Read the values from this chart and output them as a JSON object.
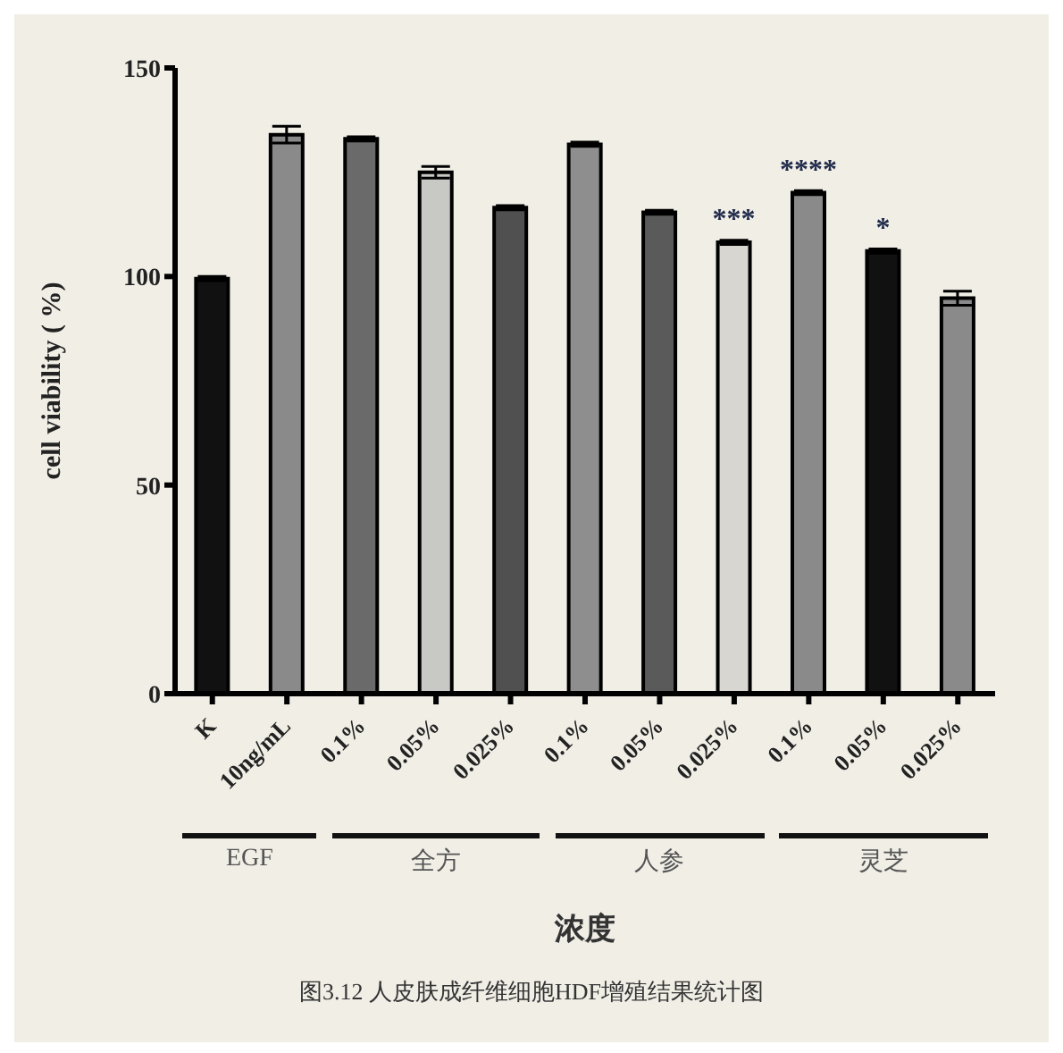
{
  "chart_data": {
    "type": "bar",
    "xlabel": "浓度",
    "ylabel": "cell viability ( %)",
    "categories": [
      "K",
      "10ng/mL",
      "0.1%",
      "0.05%",
      "0.025%",
      "0.1%",
      "0.05%",
      "0.025%",
      "0.1%",
      "0.05%",
      "0.025%"
    ],
    "values": [
      99.5,
      134,
      133,
      125,
      116.5,
      131.7,
      115.4,
      108.2,
      120.1,
      106.1,
      94.8
    ],
    "errors": [
      0.5,
      2,
      0.5,
      1.4,
      0.5,
      0.5,
      0.5,
      0.5,
      0.5,
      0.5,
      1.7
    ],
    "colors": [
      "#111111",
      "#8a8a8a",
      "#6a6a6a",
      "#c8c8c4",
      "#505050",
      "#8e8e8e",
      "#5a5a5a",
      "#d8d6d0",
      "#8a8a8a",
      "#111111",
      "#8a8a8a"
    ],
    "value_labels": [
      null,
      null,
      null,
      null,
      null,
      null,
      null,
      "***",
      "****",
      "*",
      null
    ],
    "ylim": [
      0,
      150
    ],
    "yticks": [
      0,
      50,
      100,
      150
    ],
    "annotations": [
      "EGF",
      "全方",
      "人参",
      "灵芝",
      "图3.12 人皮肤成纤维细胞HDF增殖结果统计图"
    ]
  }
}
